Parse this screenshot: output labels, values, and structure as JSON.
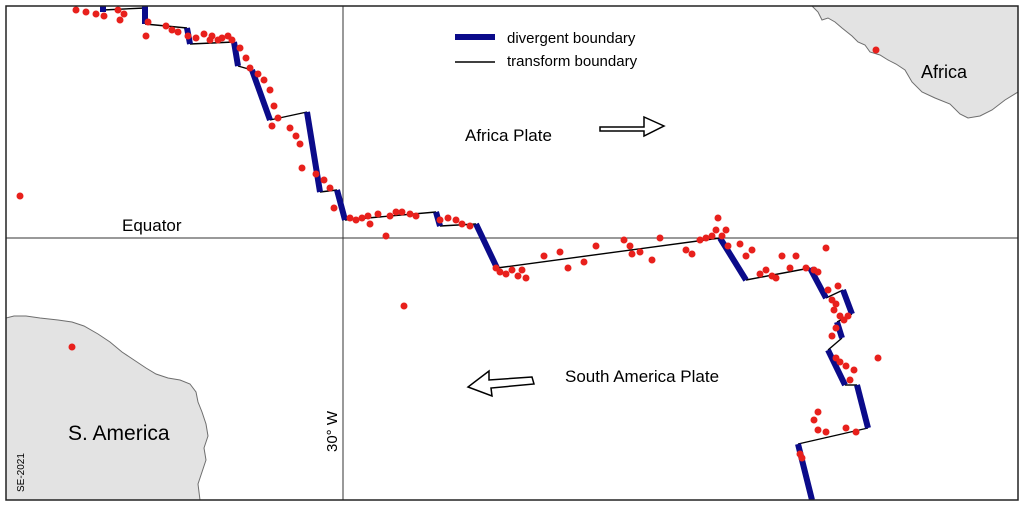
{
  "map": {
    "labels": {
      "equator": "Equator",
      "meridian": "30° W",
      "africa_plate": "Africa Plate",
      "south_america_plate": "South America Plate",
      "africa": "Africa",
      "south_america": "S. America",
      "credit": "SE-2021"
    },
    "legend": {
      "divergent": "divergent boundary",
      "transform": "transform boundary"
    },
    "colors": {
      "land": "#e3e3e3",
      "coast": "#6e6e6e",
      "divergent": "#0b0b8a",
      "transform": "#000000",
      "earthquake": "#e8201c",
      "frame": "#222222",
      "grid": "#333333"
    },
    "symbols": {
      "earthquake": "red-dot",
      "plate_motion": "hollow-arrow"
    },
    "plate_motion": {
      "africa_plate": "east",
      "south_america_plate": "west"
    }
  }
}
